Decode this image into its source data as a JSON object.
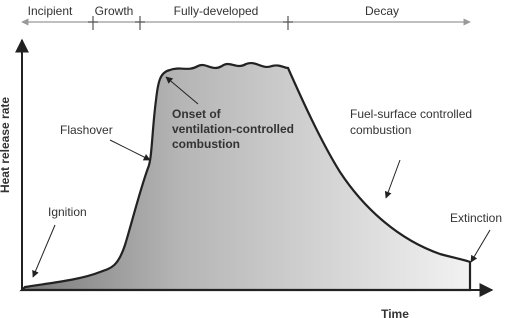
{
  "stages": [
    "Incipient",
    "Growth",
    "Fully-developed",
    "Decay"
  ],
  "axes": {
    "y_label": "Heat release rate",
    "x_label": "Time"
  },
  "annotations": {
    "ignition": [
      "Ignition"
    ],
    "flashover": [
      "Flashover"
    ],
    "onset": [
      "Onset of",
      "ventilation-controlled",
      "combustion"
    ],
    "fuel_surface": [
      "Fuel-surface controlled",
      "combustion"
    ],
    "extinction": [
      "Extinction"
    ]
  }
}
